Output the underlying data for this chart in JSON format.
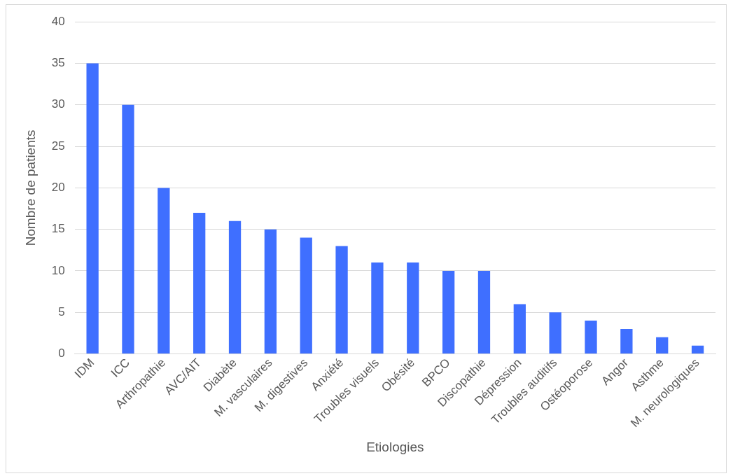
{
  "chart_data": {
    "type": "bar",
    "xlabel": "Etiologies",
    "ylabel": "Nombre de patients",
    "categories": [
      "IDM",
      "ICC",
      "Arthropathie",
      "AVC/AIT",
      "Diabète",
      "M. vasculaires",
      "M. digestives",
      "Anxiété",
      "Troubles visuels",
      "Obésité",
      "BPCO",
      "Discopathie",
      "Dépression",
      "Troubles auditifs",
      "Ostéoporose",
      "Angor",
      "Asthme",
      "M. neurologiques"
    ],
    "values": [
      35,
      30,
      20,
      17,
      16,
      15,
      14,
      13,
      11,
      11,
      10,
      10,
      6,
      5,
      4,
      3,
      2,
      1
    ],
    "color": "#3f6fff",
    "ylim": [
      0,
      40
    ],
    "yticks": [
      0,
      5,
      10,
      15,
      20,
      25,
      30,
      35,
      40
    ],
    "grid": "y"
  }
}
